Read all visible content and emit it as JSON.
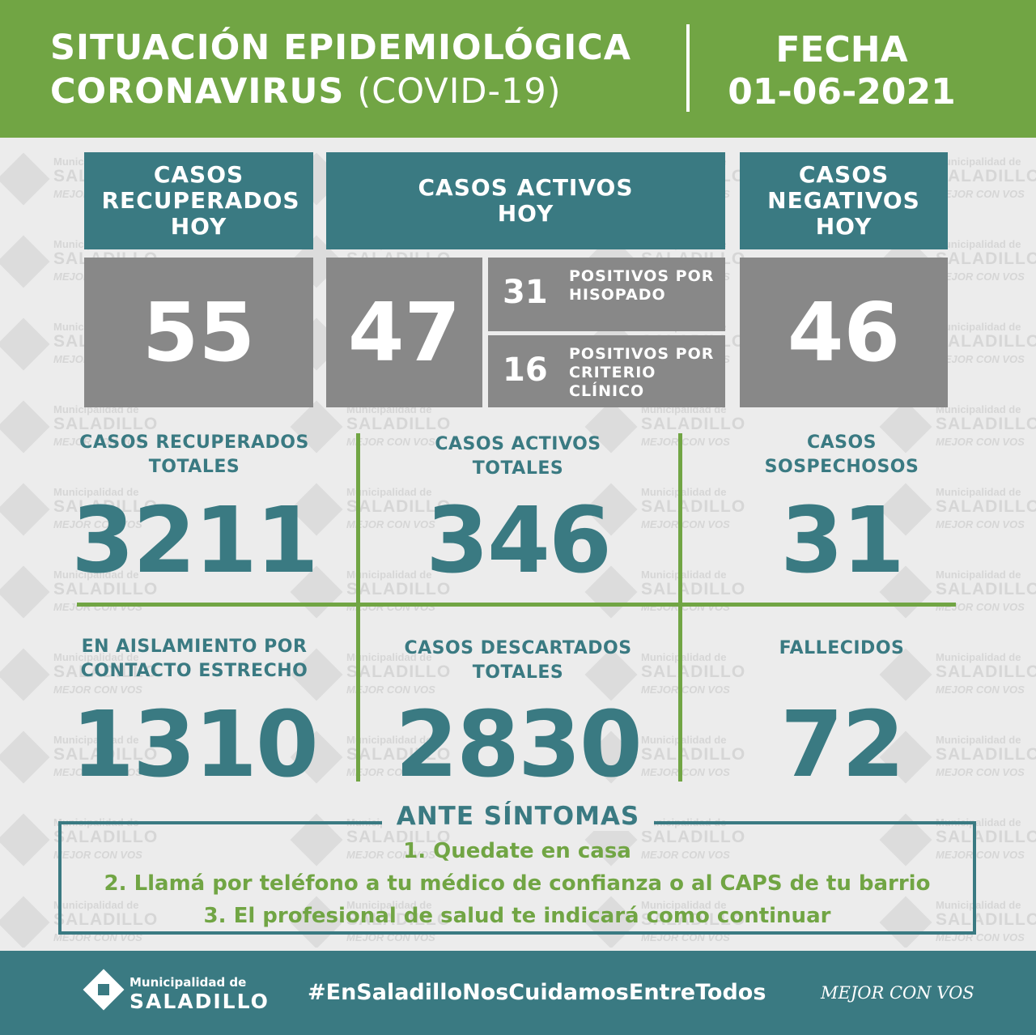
{
  "header": {
    "title_line1": "SITUACIÓN EPIDEMIOLÓGICA",
    "title_line2_bold": "CORONAVIRUS",
    "title_line2_light": "(COVID-19)",
    "date_label": "FECHA",
    "date_value": "01-06-2021"
  },
  "watermark": {
    "line1": "Municipalidad de",
    "line2": "SALADILLO",
    "line3": "MEJOR CON VOS"
  },
  "today": {
    "recovered": {
      "label": "CASOS RECUPERADOS HOY",
      "value": "55"
    },
    "active": {
      "label": "CASOS ACTIVOS HOY",
      "value": "47",
      "breakdown": [
        {
          "value": "31",
          "label": "POSITIVOS POR HISOPADO"
        },
        {
          "value": "16",
          "label": "POSITIVOS POR CRITERIO CLÍNICO"
        }
      ]
    },
    "negative": {
      "label": "CASOS NEGATIVOS HOY",
      "value": "46"
    }
  },
  "totals": [
    {
      "label": "CASOS RECUPERADOS TOTALES",
      "value": "3211"
    },
    {
      "label": "CASOS ACTIVOS TOTALES",
      "value": "346"
    },
    {
      "label": "CASOS SOSPECHOSOS",
      "value": "31"
    },
    {
      "label": "EN AISLAMIENTO POR CONTACTO ESTRECHO",
      "value": "1310"
    },
    {
      "label": "CASOS DESCARTADOS TOTALES",
      "value": "2830"
    },
    {
      "label": "FALLECIDOS",
      "value": "72"
    }
  ],
  "symptoms": {
    "title": "ANTE SÍNTOMAS",
    "steps": [
      "1. Quedate en casa",
      "2. Llamá por teléfono a tu médico de confianza o al CAPS de tu barrio",
      "3. El profesional de salud te indicará como continuar"
    ]
  },
  "footer": {
    "logo_line1": "Municipalidad de",
    "logo_line2": "SALADILLO",
    "hashtag": "#EnSaladilloNosCuidamosEntreTodos",
    "slogan": "MEJOR CON VOS"
  },
  "colors": {
    "green": "#71a544",
    "teal": "#3a7a82",
    "grey": "#888888",
    "background": "#ececec"
  }
}
